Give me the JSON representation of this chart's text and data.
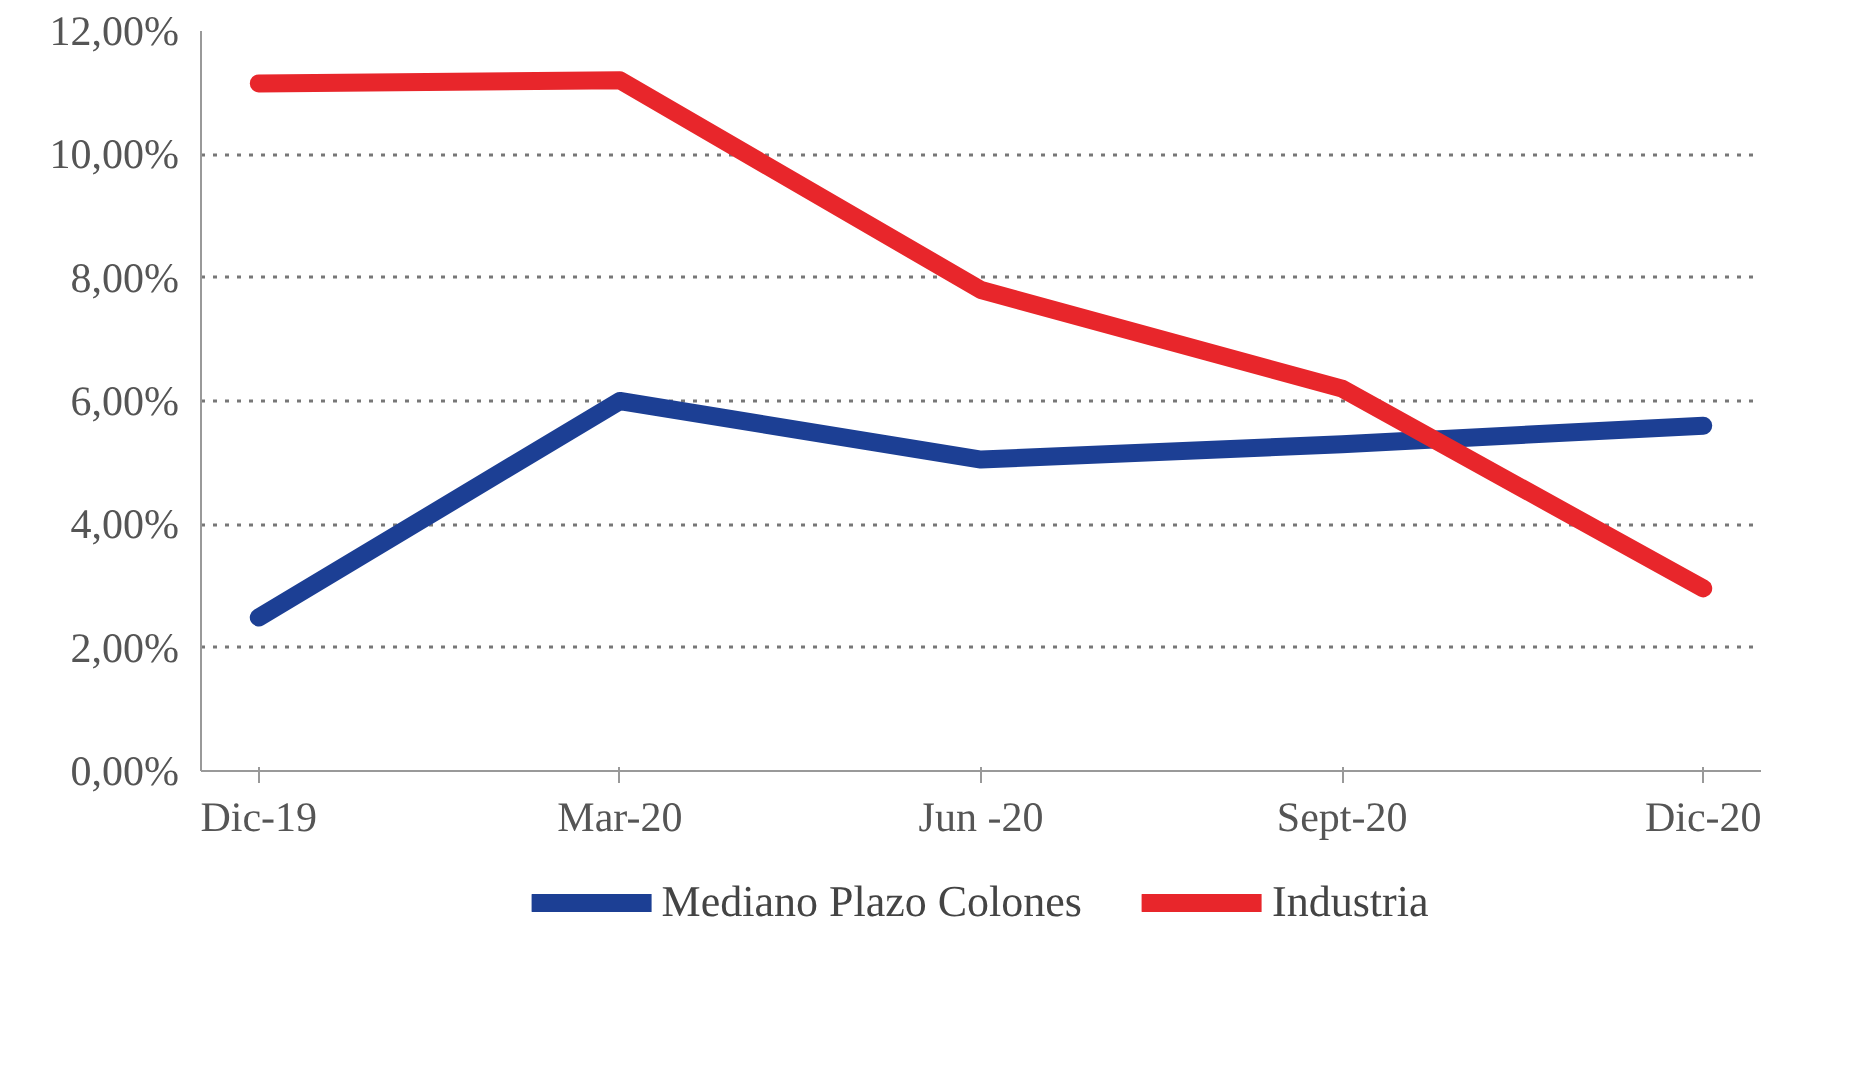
{
  "chart_data": {
    "type": "line",
    "categories": [
      "Dic-19",
      "Mar-20",
      "Jun -20",
      "Sept-20",
      "Dic-20"
    ],
    "series": [
      {
        "name": "Mediano Plazo Colones",
        "color": "#1c3f94",
        "values": [
          2.49,
          6.0,
          5.05,
          5.3,
          5.6
        ]
      },
      {
        "name": "Industria",
        "color": "#e8262b",
        "values": [
          11.15,
          11.2,
          7.8,
          6.2,
          2.96
        ]
      }
    ],
    "ylim": [
      0,
      12
    ],
    "yticks": [
      {
        "value": 0,
        "label": "0,00%"
      },
      {
        "value": 2,
        "label": "2,00%"
      },
      {
        "value": 4,
        "label": "4,00%"
      },
      {
        "value": 6,
        "label": "6,00%"
      },
      {
        "value": 8,
        "label": "8,00%"
      },
      {
        "value": 10,
        "label": "10,00%"
      },
      {
        "value": 12,
        "label": "12,00%"
      }
    ],
    "grid": "y",
    "legend": "bottom",
    "line_style": "solid",
    "marker": "none"
  }
}
